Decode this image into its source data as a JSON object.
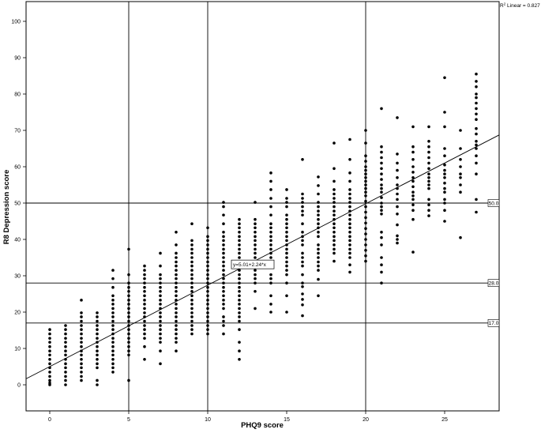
{
  "chart_data": {
    "type": "scatter",
    "title": "",
    "xlabel": "PHQ9 score",
    "ylabel": "R8 Depression score",
    "xlim": [
      -1.5,
      28.5
    ],
    "ylim": [
      -7,
      105
    ],
    "xticks": [
      0,
      5,
      10,
      15,
      20,
      25
    ],
    "yticks": [
      0,
      10,
      20,
      30,
      40,
      50,
      60,
      70,
      80,
      90,
      100
    ],
    "grid": false,
    "legend": {
      "text_prefix": "R",
      "sup": "2",
      "text": " Linear = 0.827",
      "placement": "top-right"
    },
    "fit_line": {
      "intercept": 5.01,
      "slope": 2.24,
      "label": "y=5.01+2.24*x",
      "label_x": 12.5
    },
    "reference_lines_y": [
      {
        "value": 50,
        "label": "50.0"
      },
      {
        "value": 28,
        "label": "28.0"
      },
      {
        "value": 17,
        "label": "17.0"
      }
    ],
    "reference_lines_x": [
      5,
      10,
      20
    ],
    "marker_color": "#000000",
    "columns": [
      {
        "x": 0,
        "y": [
          0,
          0.5,
          1.2,
          2.3,
          3.5,
          4.7,
          5.8,
          7,
          8.2,
          9.3,
          10.5,
          11.7,
          12.8,
          14,
          15.2
        ]
      },
      {
        "x": 1,
        "y": [
          0,
          1.2,
          2.3,
          3.5,
          4.7,
          5.8,
          7,
          8.2,
          9.3,
          10.5,
          11.7,
          12.8,
          14,
          15.2,
          16.3
        ]
      },
      {
        "x": 2,
        "y": [
          1.2,
          2.3,
          3.5,
          4.7,
          5.8,
          7,
          8.2,
          9.3,
          10.5,
          11.7,
          12.8,
          14,
          15.2,
          16.3,
          17.5,
          18.7,
          19.8,
          23.3
        ]
      },
      {
        "x": 3,
        "y": [
          0,
          1.2,
          4.7,
          5.8,
          7,
          8.2,
          9.3,
          10.5,
          11.7,
          12.8,
          14,
          15.2,
          16.3,
          17.5,
          18.7,
          19.8
        ]
      },
      {
        "x": 4,
        "y": [
          3.5,
          4.7,
          5.8,
          7,
          8.2,
          9.3,
          10.5,
          11.7,
          12.8,
          14,
          15.2,
          16.3,
          17.5,
          18.7,
          19.8,
          21,
          22.2,
          23.3,
          24.5,
          26.8,
          29.2,
          31.5
        ]
      },
      {
        "x": 5,
        "y": [
          1.2,
          8.2,
          9.3,
          10.5,
          11.7,
          12.8,
          14,
          15.2,
          16.3,
          17.5,
          18.7,
          19.8,
          21,
          22.2,
          23.3,
          24.5,
          25.7,
          26.8,
          28,
          30.3,
          37.3
        ]
      },
      {
        "x": 6,
        "y": [
          7,
          10.5,
          12.8,
          14,
          15.2,
          16.3,
          17.5,
          18.7,
          19.8,
          21,
          22.2,
          23.3,
          24.5,
          25.7,
          26.8,
          28,
          29.2,
          30.3,
          31.5,
          32.7
        ]
      },
      {
        "x": 7,
        "y": [
          5.8,
          9.3,
          11.7,
          12.8,
          14,
          15.2,
          16.3,
          17.5,
          18.7,
          19.8,
          21,
          22.2,
          23.3,
          24.5,
          25.7,
          26.8,
          28,
          29.2,
          30.3,
          32.7,
          36.2
        ]
      },
      {
        "x": 8,
        "y": [
          9.3,
          11.7,
          12.8,
          14,
          15.2,
          16.3,
          17.5,
          18.7,
          19.8,
          21,
          22.2,
          23.3,
          24.5,
          25.7,
          26.8,
          28,
          29.2,
          30.3,
          31.5,
          32.7,
          33.8,
          35,
          36.2,
          38.5,
          42
        ]
      },
      {
        "x": 9,
        "y": [
          14,
          15.2,
          16.3,
          17.5,
          18.7,
          19.8,
          21,
          22.2,
          23.3,
          24.5,
          25.7,
          26.8,
          28,
          29.2,
          30.3,
          31.5,
          32.7,
          33.8,
          35,
          36.2,
          37.3,
          38.5,
          39.7,
          44.3
        ]
      },
      {
        "x": 10,
        "y": [
          14,
          15.2,
          16.3,
          17.5,
          18.7,
          19.8,
          21,
          22.2,
          23.3,
          24.5,
          25.7,
          26.8,
          28,
          29.2,
          30.3,
          31.5,
          32.7,
          33.8,
          35,
          36.2,
          37.3,
          38.5,
          39.7,
          40.8,
          43.2
        ]
      },
      {
        "x": 11,
        "y": [
          14,
          16.3,
          17.5,
          18.7,
          21,
          22.2,
          23.3,
          24.5,
          25.7,
          26.8,
          28,
          29.2,
          30.3,
          31.5,
          32.7,
          33.8,
          35,
          36.2,
          37.3,
          38.5,
          39.7,
          40.8,
          42,
          44.3,
          46.7,
          49,
          50.2
        ]
      },
      {
        "x": 12,
        "y": [
          7,
          9.3,
          11.7,
          15.2,
          17.5,
          18.7,
          19.8,
          21,
          22.2,
          23.3,
          24.5,
          25.7,
          26.8,
          28,
          29.2,
          30.3,
          31.5,
          32.7,
          33.8,
          35,
          36.2,
          37.3,
          38.5,
          39.7,
          40.8,
          42,
          43.2,
          44.3,
          45.5
        ]
      },
      {
        "x": 13,
        "y": [
          21,
          25.7,
          28,
          29.2,
          30.3,
          31.5,
          32.7,
          33.8,
          35,
          36.2,
          37.3,
          38.5,
          39.7,
          40.8,
          42,
          43.2,
          44.3,
          45.5,
          50.2
        ]
      },
      {
        "x": 14,
        "y": [
          20,
          22.2,
          24.5,
          28,
          29.2,
          30.3,
          32.7,
          33.8,
          35,
          36.2,
          37.3,
          38.5,
          39.7,
          40.8,
          42,
          43.2,
          44.3,
          46.7,
          49,
          51.3,
          53.7,
          56,
          58.3
        ]
      },
      {
        "x": 15,
        "y": [
          20,
          24.5,
          28,
          30.3,
          31.5,
          32.7,
          33.8,
          35,
          36.2,
          37.3,
          38.5,
          39.7,
          40.8,
          42,
          43.2,
          44.3,
          45.5,
          46.7,
          49,
          50.2,
          51.3,
          53.7
        ]
      },
      {
        "x": 16,
        "y": [
          19,
          22,
          23.5,
          25,
          27,
          28,
          30.3,
          32.7,
          33.8,
          35,
          36.2,
          38.5,
          39.7,
          40.8,
          42,
          44.3,
          46.7,
          47.8,
          49,
          50.2,
          51.3,
          52.5,
          62
        ]
      },
      {
        "x": 17,
        "y": [
          24.5,
          29,
          31.5,
          32.7,
          33.8,
          35,
          36.2,
          37.3,
          38.5,
          40.8,
          42,
          43.2,
          44.3,
          45.5,
          46.7,
          47.8,
          49,
          50.2,
          52.5,
          54.8,
          57.2
        ]
      },
      {
        "x": 18,
        "y": [
          34,
          36.2,
          37.3,
          38.5,
          39.7,
          40.8,
          42,
          43.2,
          44.3,
          45.5,
          46.7,
          47.8,
          49,
          50.2,
          51.3,
          52.5,
          53.7,
          56,
          59.5,
          66.5
        ]
      },
      {
        "x": 19,
        "y": [
          31,
          33,
          35,
          36.2,
          37.3,
          38.5,
          39.7,
          40.8,
          42,
          43.2,
          44.3,
          45.5,
          46.7,
          47.8,
          49,
          50.2,
          51.3,
          52.5,
          53.7,
          56,
          58.3,
          62,
          67.5
        ]
      },
      {
        "x": 20,
        "y": [
          34,
          35.5,
          37,
          38.5,
          40,
          41.5,
          43,
          44.5,
          46,
          47.5,
          49,
          50.5,
          52,
          53,
          54,
          55,
          56,
          57,
          58,
          59,
          60,
          61.5,
          63,
          66.5,
          70
        ]
      },
      {
        "x": 21,
        "y": [
          28,
          31,
          33,
          35,
          38.5,
          40.5,
          42,
          47,
          48,
          49,
          50,
          51.5,
          53,
          54,
          55,
          56.5,
          58,
          59.5,
          61,
          62.5,
          64,
          65.5,
          76
        ]
      },
      {
        "x": 22,
        "y": [
          39,
          40,
          41,
          44,
          47,
          49,
          51,
          52.5,
          54,
          55,
          57,
          59,
          61,
          63.5,
          73.5
        ]
      },
      {
        "x": 23,
        "y": [
          36.5,
          45.5,
          48,
          49.5,
          51,
          52,
          53,
          54.5,
          56,
          57,
          58.5,
          60,
          62,
          64,
          65.5,
          71
        ]
      },
      {
        "x": 24,
        "y": [
          46.5,
          48,
          49.5,
          51,
          54,
          55,
          56,
          57,
          58,
          59.5,
          61,
          62.5,
          64,
          65.5,
          67,
          71
        ]
      },
      {
        "x": 25,
        "y": [
          45,
          48,
          50,
          51,
          53,
          54,
          55.5,
          57,
          58,
          59,
          60.5,
          63,
          65,
          71,
          75,
          84.5
        ]
      },
      {
        "x": 26,
        "y": [
          40.5,
          53,
          55,
          57,
          58,
          60,
          62,
          65,
          70
        ]
      },
      {
        "x": 27,
        "y": [
          47.5,
          51,
          58,
          61,
          63,
          65,
          66,
          67,
          69,
          70.5,
          73,
          74.5,
          76,
          77.5,
          79,
          80,
          82,
          83.5,
          85.5
        ]
      }
    ]
  }
}
